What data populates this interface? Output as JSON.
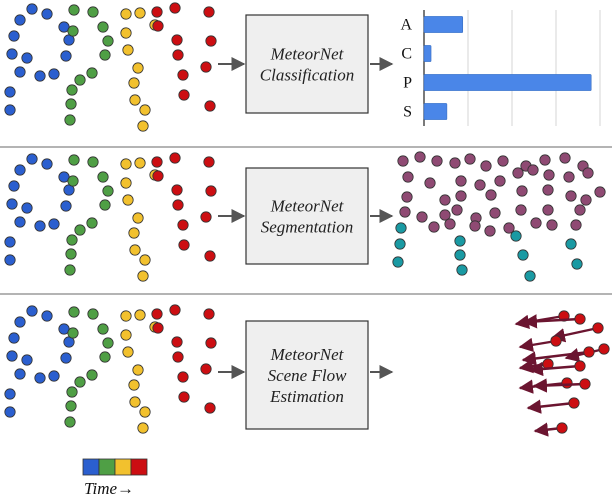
{
  "panels": [
    {
      "id": "classification",
      "box_lines": [
        "MeteorNet",
        "Classification"
      ]
    },
    {
      "id": "segmentation",
      "box_lines": [
        "MeteorNet",
        "Segmentation"
      ]
    },
    {
      "id": "sceneflow",
      "box_lines": [
        "MeteorNet",
        "Scene Flow",
        "Estimation"
      ]
    }
  ],
  "chart_data": {
    "type": "bar",
    "orientation": "horizontal",
    "categories": [
      "A",
      "C",
      "P",
      "S"
    ],
    "values": [
      0.22,
      0.04,
      0.95,
      0.13
    ],
    "xlim": [
      0,
      1
    ],
    "grid": true
  },
  "legend": {
    "time_label": "Time→",
    "colors": [
      "#2b5fcf",
      "#4f9f45",
      "#f2c12e",
      "#cc0e12"
    ]
  },
  "colors": {
    "seg_class_a": "#8f4a73",
    "seg_class_b": "#1a9aa3",
    "flow_arrow": "#6b1530",
    "flow_point": "#cc0e12",
    "bar": "#4a86e8",
    "box_fill": "#efefef",
    "box_stroke": "#333333",
    "arrow": "#555555",
    "divider": "#888888"
  }
}
